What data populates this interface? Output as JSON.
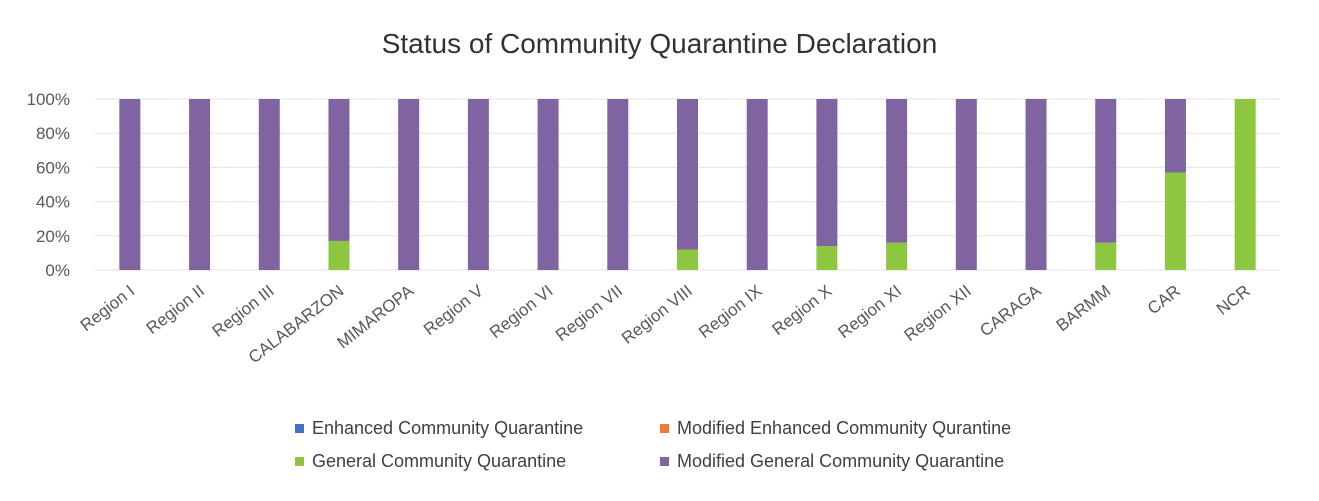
{
  "chart_data": {
    "type": "bar",
    "stacked": true,
    "title": "Status of Community Quarantine Declaration",
    "xlabel": "",
    "ylabel": "",
    "ylim": [
      0,
      100
    ],
    "y_ticks": [
      "100%",
      "80%",
      "60%",
      "40%",
      "20%",
      "0%"
    ],
    "grid": true,
    "legend_position": "bottom",
    "categories": [
      "Region I",
      "Region II",
      "Region III",
      "CALABARZON",
      "MIMAROPA",
      "Region V",
      "Region VI",
      "Region VII",
      "Region VIII",
      "Region IX",
      "Region X",
      "Region XI",
      "Region XII",
      "CARAGA",
      "BARMM",
      "CAR",
      "NCR"
    ],
    "series": [
      {
        "name": "Enhanced Community Quarantine",
        "color": "#4472C4",
        "values": [
          0,
          0,
          0,
          0,
          0,
          0,
          0,
          0,
          0,
          0,
          0,
          0,
          0,
          0,
          0,
          0,
          0
        ]
      },
      {
        "name": "Modified Enhanced Community Qurantine",
        "color": "#ED7D31",
        "values": [
          0,
          0,
          0,
          0,
          0,
          0,
          0,
          0,
          0,
          0,
          0,
          0,
          0,
          0,
          0,
          0,
          0
        ]
      },
      {
        "name": "General Community Quarantine",
        "color": "#8DC63F",
        "values": [
          0,
          0,
          0,
          17,
          0,
          0,
          0,
          0,
          12,
          0,
          14,
          16,
          0,
          0,
          16,
          57,
          100
        ]
      },
      {
        "name": "Modified General Community Quarantine",
        "color": "#8064A2",
        "values": [
          100,
          100,
          100,
          83,
          100,
          100,
          100,
          100,
          88,
          100,
          86,
          84,
          100,
          100,
          84,
          43,
          0
        ]
      }
    ]
  },
  "legend_order": [
    0,
    1,
    2,
    3
  ]
}
